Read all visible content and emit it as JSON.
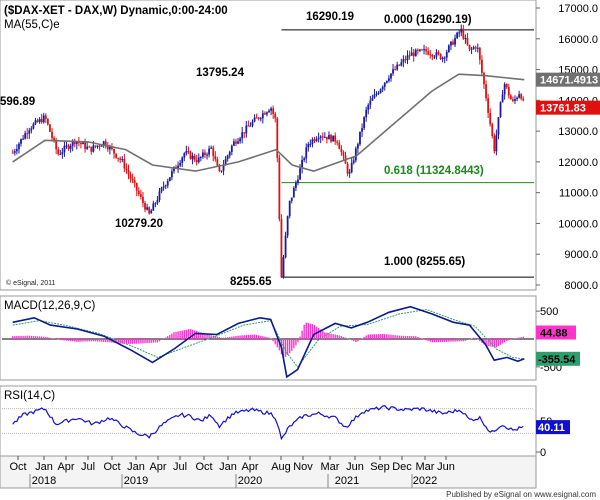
{
  "header": {
    "title": "($DAX-XET - DAX,W) Dynamic,0:00-24:00",
    "ma_label": "MA(55,C)e",
    "copyright": "© eSignal, 2011",
    "footer": "Published by eSignal on www.esignal.com"
  },
  "colors": {
    "candle_up": "#1a1aa6",
    "candle_down": "#e01010",
    "ma": "#707070",
    "fib_line": "#1a8a1a",
    "fib_text": "#1a8a1a",
    "macd_line": "#0a1a8a",
    "macd_signal": "#2e9e6e",
    "macd_hist": "#ff33cc",
    "rsi_line": "#1010d0",
    "current_price_bg": "#e01010",
    "ma_price_bg": "#707070",
    "macd_value_bg": "#2e9e6e",
    "rsi_value_bg": "#1010d0"
  },
  "chart_data": {
    "type": "candlestick",
    "symbol": "$DAX-XET",
    "timeframe": "Weekly",
    "price_axis": {
      "ylim": [
        8000,
        17000
      ],
      "ticks": [
        "17000.0",
        "16000.0",
        "15000.0",
        "14000.0",
        "13000.0",
        "12000.0",
        "11000.0",
        "10000.0",
        "9000.0",
        "8000.0"
      ]
    },
    "x_axis": {
      "month_ticks": [
        "Oct",
        "Jan",
        "Apr",
        "Jul",
        "Oct",
        "Jan",
        "Apr",
        "Jul",
        "Oct",
        "Jan",
        "Apr",
        "Aug",
        "Nov",
        "Mar",
        "Jun",
        "Sep",
        "Dec",
        "Mar",
        "Jun"
      ],
      "year_labels": [
        "2018",
        "2019",
        "2020",
        "2021",
        "2022"
      ]
    },
    "price_path": [
      [
        2017.7,
        12300
      ],
      [
        2017.85,
        13100
      ],
      [
        2018.0,
        13450
      ],
      [
        2018.12,
        12250
      ],
      [
        2018.28,
        12700
      ],
      [
        2018.42,
        12400
      ],
      [
        2018.55,
        12650
      ],
      [
        2018.72,
        12000
      ],
      [
        2018.85,
        11100
      ],
      [
        2018.97,
        10279.2
      ],
      [
        2019.1,
        11200
      ],
      [
        2019.3,
        12300
      ],
      [
        2019.42,
        12050
      ],
      [
        2019.55,
        12450
      ],
      [
        2019.62,
        11600
      ],
      [
        2019.75,
        12600
      ],
      [
        2019.92,
        13250
      ],
      [
        2020.1,
        13795.24
      ],
      [
        2020.15,
        13300
      ],
      [
        2020.2,
        8255.65
      ],
      [
        2020.27,
        10600
      ],
      [
        2020.45,
        12600
      ],
      [
        2020.55,
        12900
      ],
      [
        2020.72,
        12700
      ],
      [
        2020.83,
        11550
      ],
      [
        2021.0,
        13800
      ],
      [
        2021.2,
        14800
      ],
      [
        2021.4,
        15500
      ],
      [
        2021.55,
        15600
      ],
      [
        2021.7,
        15400
      ],
      [
        2021.87,
        16290.19
      ],
      [
        2021.95,
        15600
      ],
      [
        2022.02,
        15800
      ],
      [
        2022.1,
        14200
      ],
      [
        2022.18,
        12400
      ],
      [
        2022.27,
        14600
      ],
      [
        2022.35,
        13900
      ],
      [
        2022.42,
        14300
      ],
      [
        2022.46,
        13761.83
      ]
    ],
    "ma55_path": [
      [
        2017.7,
        12000
      ],
      [
        2018.0,
        12700
      ],
      [
        2018.4,
        12650
      ],
      [
        2018.75,
        12400
      ],
      [
        2019.0,
        11900
      ],
      [
        2019.4,
        11700
      ],
      [
        2019.8,
        12000
      ],
      [
        2020.15,
        12400
      ],
      [
        2020.3,
        11900
      ],
      [
        2020.5,
        11700
      ],
      [
        2020.9,
        12200
      ],
      [
        2021.2,
        13100
      ],
      [
        2021.6,
        14300
      ],
      [
        2021.85,
        14850
      ],
      [
        2022.1,
        14800
      ],
      [
        2022.46,
        14671.4913
      ]
    ],
    "annotations": {
      "high_2017": "596.89",
      "low_2018": "10279.20",
      "high_2020": "13795.24",
      "low_2020": "8255.65",
      "high_2021": "16290.19"
    },
    "fib_levels": [
      {
        "label": "0.000 (16290.19)",
        "value": 16290.19
      },
      {
        "label": "0.618 (11324.8443)",
        "value": 11324.8443
      },
      {
        "label": "1.000 (8255.65)",
        "value": 8255.65
      }
    ],
    "price_tags": {
      "ma_value": "14671.4913",
      "ma_numeric": 14671.4913,
      "last_price": "13761.83",
      "last_numeric": 13761.83
    },
    "macd": {
      "label": "MACD(12,26,9,C)",
      "ylim": [
        -700,
        700
      ],
      "ticks": [
        "500",
        "-500"
      ],
      "value_tag": "-355.54",
      "value_numeric": -355.54,
      "hist_tag": "44.88",
      "hist_numeric": 44.88,
      "macd_path": [
        [
          2017.7,
          300
        ],
        [
          2017.9,
          380
        ],
        [
          2018.05,
          250
        ],
        [
          2018.3,
          180
        ],
        [
          2018.55,
          50
        ],
        [
          2018.8,
          -200
        ],
        [
          2019.0,
          -420
        ],
        [
          2019.2,
          -180
        ],
        [
          2019.4,
          100
        ],
        [
          2019.6,
          80
        ],
        [
          2019.8,
          280
        ],
        [
          2020.0,
          380
        ],
        [
          2020.1,
          350
        ],
        [
          2020.2,
          -150
        ],
        [
          2020.25,
          -680
        ],
        [
          2020.35,
          -550
        ],
        [
          2020.5,
          80
        ],
        [
          2020.7,
          280
        ],
        [
          2020.85,
          200
        ],
        [
          2021.0,
          300
        ],
        [
          2021.2,
          480
        ],
        [
          2021.4,
          580
        ],
        [
          2021.6,
          450
        ],
        [
          2021.8,
          300
        ],
        [
          2021.95,
          250
        ],
        [
          2022.1,
          -100
        ],
        [
          2022.18,
          -380
        ],
        [
          2022.3,
          -330
        ],
        [
          2022.4,
          -400
        ],
        [
          2022.46,
          -355.54
        ]
      ],
      "signal_path": [
        [
          2017.7,
          250
        ],
        [
          2017.95,
          330
        ],
        [
          2018.2,
          240
        ],
        [
          2018.5,
          100
        ],
        [
          2018.8,
          -120
        ],
        [
          2019.05,
          -330
        ],
        [
          2019.3,
          -150
        ],
        [
          2019.6,
          60
        ],
        [
          2019.85,
          250
        ],
        [
          2020.1,
          330
        ],
        [
          2020.25,
          -250
        ],
        [
          2020.35,
          -500
        ],
        [
          2020.55,
          0
        ],
        [
          2020.75,
          230
        ],
        [
          2021.0,
          260
        ],
        [
          2021.3,
          450
        ],
        [
          2021.55,
          530
        ],
        [
          2021.8,
          350
        ],
        [
          2022.0,
          230
        ],
        [
          2022.2,
          -180
        ],
        [
          2022.35,
          -330
        ],
        [
          2022.46,
          -360
        ]
      ],
      "hist_path": [
        [
          2017.7,
          50
        ],
        [
          2017.85,
          60
        ],
        [
          2018.0,
          40
        ],
        [
          2018.15,
          -20
        ],
        [
          2018.3,
          -50
        ],
        [
          2018.45,
          -40
        ],
        [
          2018.6,
          -60
        ],
        [
          2018.75,
          -90
        ],
        [
          2018.9,
          -80
        ],
        [
          2019.05,
          -60
        ],
        [
          2019.2,
          120
        ],
        [
          2019.35,
          180
        ],
        [
          2019.5,
          90
        ],
        [
          2019.65,
          20
        ],
        [
          2019.8,
          60
        ],
        [
          2019.95,
          80
        ],
        [
          2020.1,
          20
        ],
        [
          2020.18,
          -200
        ],
        [
          2020.22,
          -350
        ],
        [
          2020.28,
          -250
        ],
        [
          2020.35,
          -80
        ],
        [
          2020.42,
          300
        ],
        [
          2020.5,
          260
        ],
        [
          2020.6,
          120
        ],
        [
          2020.75,
          60
        ],
        [
          2020.9,
          -60
        ],
        [
          2021.0,
          80
        ],
        [
          2021.15,
          90
        ],
        [
          2021.3,
          60
        ],
        [
          2021.45,
          50
        ],
        [
          2021.6,
          -60
        ],
        [
          2021.75,
          -50
        ],
        [
          2021.9,
          -40
        ],
        [
          2022.0,
          30
        ],
        [
          2022.1,
          -120
        ],
        [
          2022.2,
          -150
        ],
        [
          2022.3,
          -30
        ],
        [
          2022.4,
          20
        ],
        [
          2022.46,
          44.88
        ]
      ]
    },
    "rsi": {
      "label": "RSI(14,C)",
      "ylim": [
        0,
        100
      ],
      "ticks": [
        "50",
        "0"
      ],
      "value_tag": "40.11",
      "value_numeric": 40.11,
      "upper_band": 70,
      "lower_band": 30,
      "rsi_path": [
        [
          2017.7,
          45
        ],
        [
          2017.8,
          60
        ],
        [
          2017.9,
          65
        ],
        [
          2018.0,
          70
        ],
        [
          2018.1,
          45
        ],
        [
          2018.2,
          50
        ],
        [
          2018.3,
          55
        ],
        [
          2018.45,
          45
        ],
        [
          2018.6,
          55
        ],
        [
          2018.75,
          40
        ],
        [
          2018.85,
          30
        ],
        [
          2018.97,
          25
        ],
        [
          2019.1,
          45
        ],
        [
          2019.25,
          60
        ],
        [
          2019.35,
          58
        ],
        [
          2019.45,
          50
        ],
        [
          2019.55,
          60
        ],
        [
          2019.62,
          42
        ],
        [
          2019.75,
          62
        ],
        [
          2019.92,
          68
        ],
        [
          2020.1,
          62
        ],
        [
          2020.15,
          55
        ],
        [
          2020.2,
          20
        ],
        [
          2020.27,
          40
        ],
        [
          2020.4,
          58
        ],
        [
          2020.55,
          62
        ],
        [
          2020.7,
          55
        ],
        [
          2020.8,
          40
        ],
        [
          2020.95,
          65
        ],
        [
          2021.15,
          72
        ],
        [
          2021.35,
          68
        ],
        [
          2021.5,
          70
        ],
        [
          2021.7,
          62
        ],
        [
          2021.87,
          68
        ],
        [
          2021.95,
          52
        ],
        [
          2022.05,
          55
        ],
        [
          2022.15,
          30
        ],
        [
          2022.25,
          45
        ],
        [
          2022.35,
          35
        ],
        [
          2022.46,
          40.11
        ]
      ]
    }
  }
}
